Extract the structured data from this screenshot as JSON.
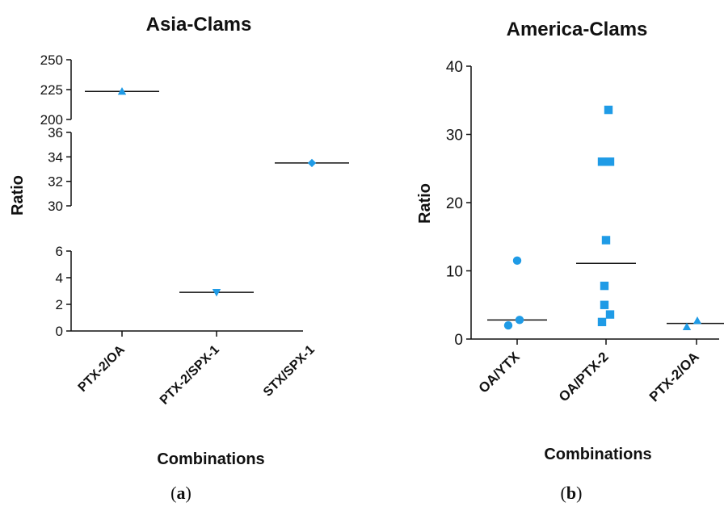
{
  "chart_data": [
    {
      "panel": "a",
      "type": "scatter",
      "title": "Asia-Clams",
      "xlabel": "Combinations",
      "ylabel": "Ratio",
      "caption": {
        "open": "(",
        "letter": "a",
        "close": ")"
      },
      "categories": [
        "PTX-2/OA",
        "PTX-2/SPX-1",
        "STX/SPX-1"
      ],
      "y_axis_segments": [
        {
          "range": [
            0,
            6
          ],
          "ticks": [
            0,
            2,
            4,
            6
          ]
        },
        {
          "range": [
            30,
            36
          ],
          "ticks": [
            30,
            32,
            34,
            36
          ]
        },
        {
          "range": [
            200,
            250
          ],
          "ticks": [
            200,
            225,
            250
          ]
        }
      ],
      "series": [
        {
          "category": "PTX-2/OA",
          "marker": "triangle-up",
          "values": [
            223.5
          ],
          "median": 223.5
        },
        {
          "category": "PTX-2/SPX-1",
          "marker": "triangle-down",
          "values": [
            2.9
          ],
          "median": 2.9
        },
        {
          "category": "STX/SPX-1",
          "marker": "diamond",
          "values": [
            33.5
          ],
          "median": 33.5
        }
      ],
      "color": "#1f9be6",
      "grid": false
    },
    {
      "panel": "b",
      "type": "scatter",
      "title": "America-Clams",
      "xlabel": "Combinations",
      "ylabel": "Ratio",
      "caption": {
        "open": "(",
        "letter": "b",
        "close": ")"
      },
      "categories": [
        "OA/YTX",
        "OA/PTX-2",
        "PTX-2/OA"
      ],
      "ylim": [
        0,
        40
      ],
      "yticks": [
        0,
        10,
        20,
        30,
        40
      ],
      "series": [
        {
          "category": "OA/YTX",
          "marker": "circle",
          "values": [
            11.5,
            2.0,
            2.8
          ],
          "median": 2.8
        },
        {
          "category": "OA/PTX-2",
          "marker": "square",
          "values": [
            33.6,
            26.0,
            26.0,
            14.5,
            7.8,
            5.0,
            3.6,
            2.5
          ],
          "median": 11.1
        },
        {
          "category": "PTX-2/OA",
          "marker": "triangle-up",
          "values": [
            1.8,
            2.7
          ],
          "median": 2.3
        }
      ],
      "color": "#1f9be6",
      "grid": false
    }
  ]
}
